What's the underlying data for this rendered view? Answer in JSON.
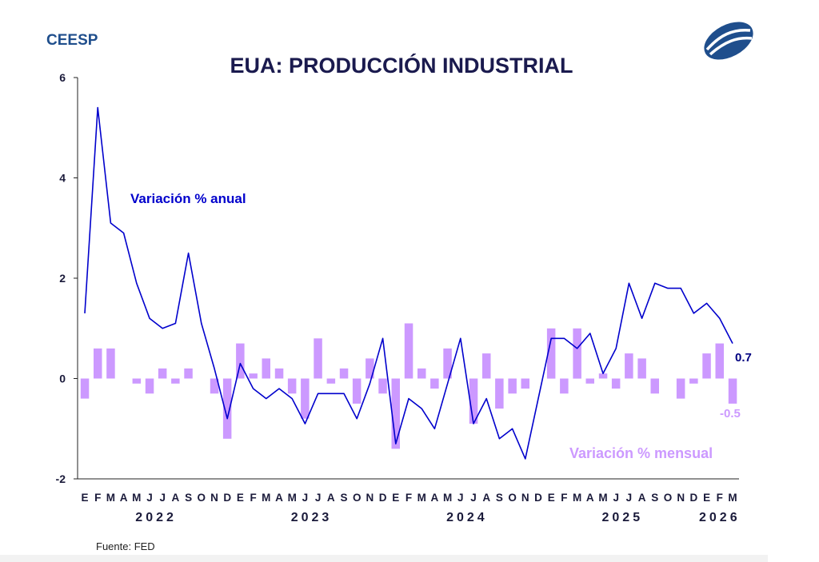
{
  "brand": "CEESP",
  "footer": {
    "source": "Fuente: FED"
  },
  "colors": {
    "line": "#0000cc",
    "bars": "#cc99ff",
    "title": "#1a1a4e",
    "brand": "#1f4e8c",
    "logo": "#1f4e8c"
  },
  "chart_data": {
    "type": "bar+line",
    "title": "EUA: PRODUCCIÓN INDUSTRIAL",
    "ylim": [
      -2,
      6
    ],
    "yticks": [
      -2,
      0,
      2,
      4,
      6
    ],
    "month_labels": [
      "E",
      "F",
      "M",
      "A",
      "M",
      "J",
      "J",
      "A",
      "S",
      "O",
      "N",
      "D",
      "E",
      "F",
      "M",
      "A",
      "M",
      "J",
      "J",
      "A",
      "S",
      "O",
      "N",
      "D",
      "E",
      "F",
      "M",
      "A",
      "M",
      "J",
      "J",
      "A",
      "S",
      "O",
      "N",
      "D",
      "E",
      "F",
      "M",
      "A",
      "M",
      "J",
      "J",
      "A",
      "S",
      "O",
      "N",
      "D",
      "E",
      "F",
      "M"
    ],
    "year_labels": [
      {
        "label": "2022",
        "start": 0,
        "end": 11
      },
      {
        "label": "2023",
        "start": 12,
        "end": 23
      },
      {
        "label": "2024",
        "start": 24,
        "end": 35
      },
      {
        "label": "2025",
        "start": 36,
        "end": 47
      },
      {
        "label": "2026",
        "start": 48,
        "end": 50
      }
    ],
    "series": [
      {
        "name": "Variación % anual",
        "kind": "line",
        "values": [
          1.3,
          5.4,
          3.1,
          2.9,
          1.9,
          1.2,
          1.0,
          1.1,
          2.5,
          1.1,
          0.2,
          -0.8,
          0.3,
          -0.2,
          -0.4,
          -0.2,
          -0.4,
          -0.9,
          -0.3,
          -0.3,
          -0.3,
          -0.8,
          -0.1,
          0.8,
          -1.3,
          -0.4,
          -0.6,
          -1.0,
          -0.1,
          0.8,
          -0.9,
          -0.4,
          -1.2,
          -1.0,
          -1.6,
          -0.4,
          0.8,
          0.8,
          0.6,
          0.9,
          0.1,
          0.6,
          1.9,
          1.2,
          1.9,
          1.8,
          1.8,
          1.3,
          1.5,
          1.2,
          0.7
        ]
      },
      {
        "name": "Variación % mensual",
        "kind": "bar",
        "values": [
          -0.4,
          0.6,
          0.6,
          0.0,
          -0.1,
          -0.3,
          0.2,
          -0.1,
          0.2,
          0.0,
          -0.3,
          -1.2,
          0.7,
          0.1,
          0.4,
          0.2,
          -0.3,
          -0.8,
          0.8,
          -0.1,
          0.2,
          -0.5,
          0.4,
          -0.3,
          -1.4,
          1.1,
          0.2,
          -0.2,
          0.6,
          0.0,
          -0.9,
          0.5,
          -0.6,
          -0.3,
          -0.2,
          0.0,
          1.0,
          -0.3,
          1.0,
          -0.1,
          0.1,
          -0.2,
          0.5,
          0.4,
          -0.3,
          0.0,
          -0.4,
          -0.1,
          0.5,
          0.7,
          -0.5
        ]
      }
    ],
    "annotations": {
      "line_label": "Variación % anual",
      "bar_label": "Variación % mensual",
      "last_line_value": "0.7",
      "last_bar_value": "-0.5"
    }
  }
}
